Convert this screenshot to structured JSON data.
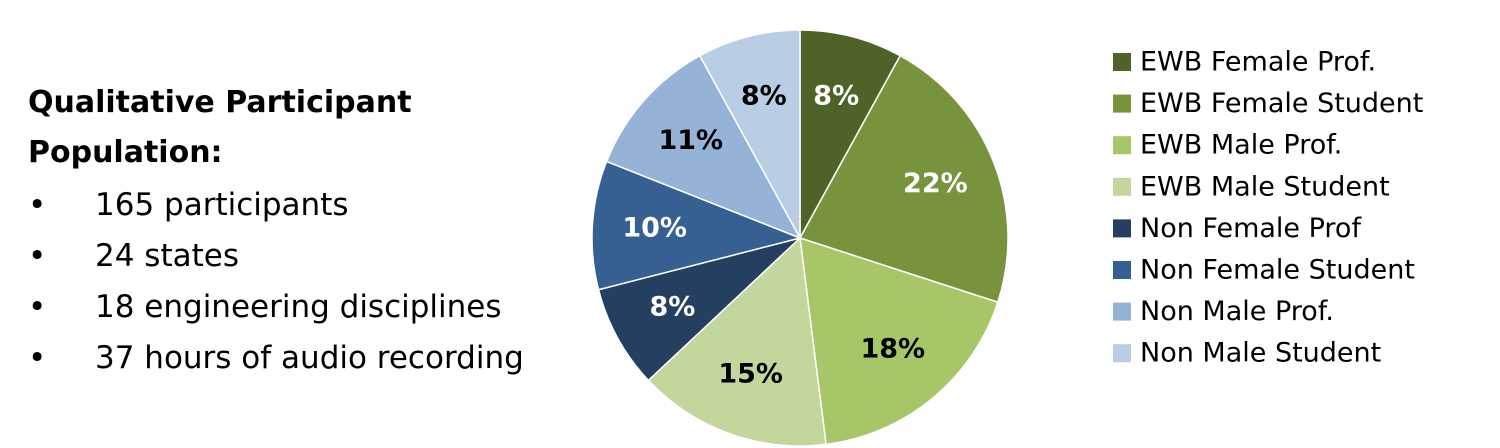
{
  "panel": {
    "heading": "Qualitative Participant Population:",
    "bullets": [
      "165 participants",
      "24 states",
      "18 engineering disciplines",
      "37 hours of audio recording"
    ]
  },
  "chart_data": {
    "type": "pie",
    "categories": [
      "EWB Female Prof.",
      "EWB Female Student",
      "EWB Male Prof.",
      "EWB Male Student",
      "Non Female Prof",
      "Non Female Student",
      "Non Male Prof.",
      "Non Male Student"
    ],
    "values": [
      8,
      22,
      18,
      15,
      8,
      10,
      11,
      8
    ],
    "value_labels": [
      "8%",
      "22%",
      "18%",
      "15%",
      "8%",
      "10%",
      "11%",
      "8%"
    ],
    "colors": [
      "#4f6228",
      "#77933c",
      "#a6c667",
      "#c3d69b",
      "#243f60",
      "#376092",
      "#95b3d7",
      "#b9cde5"
    ]
  }
}
